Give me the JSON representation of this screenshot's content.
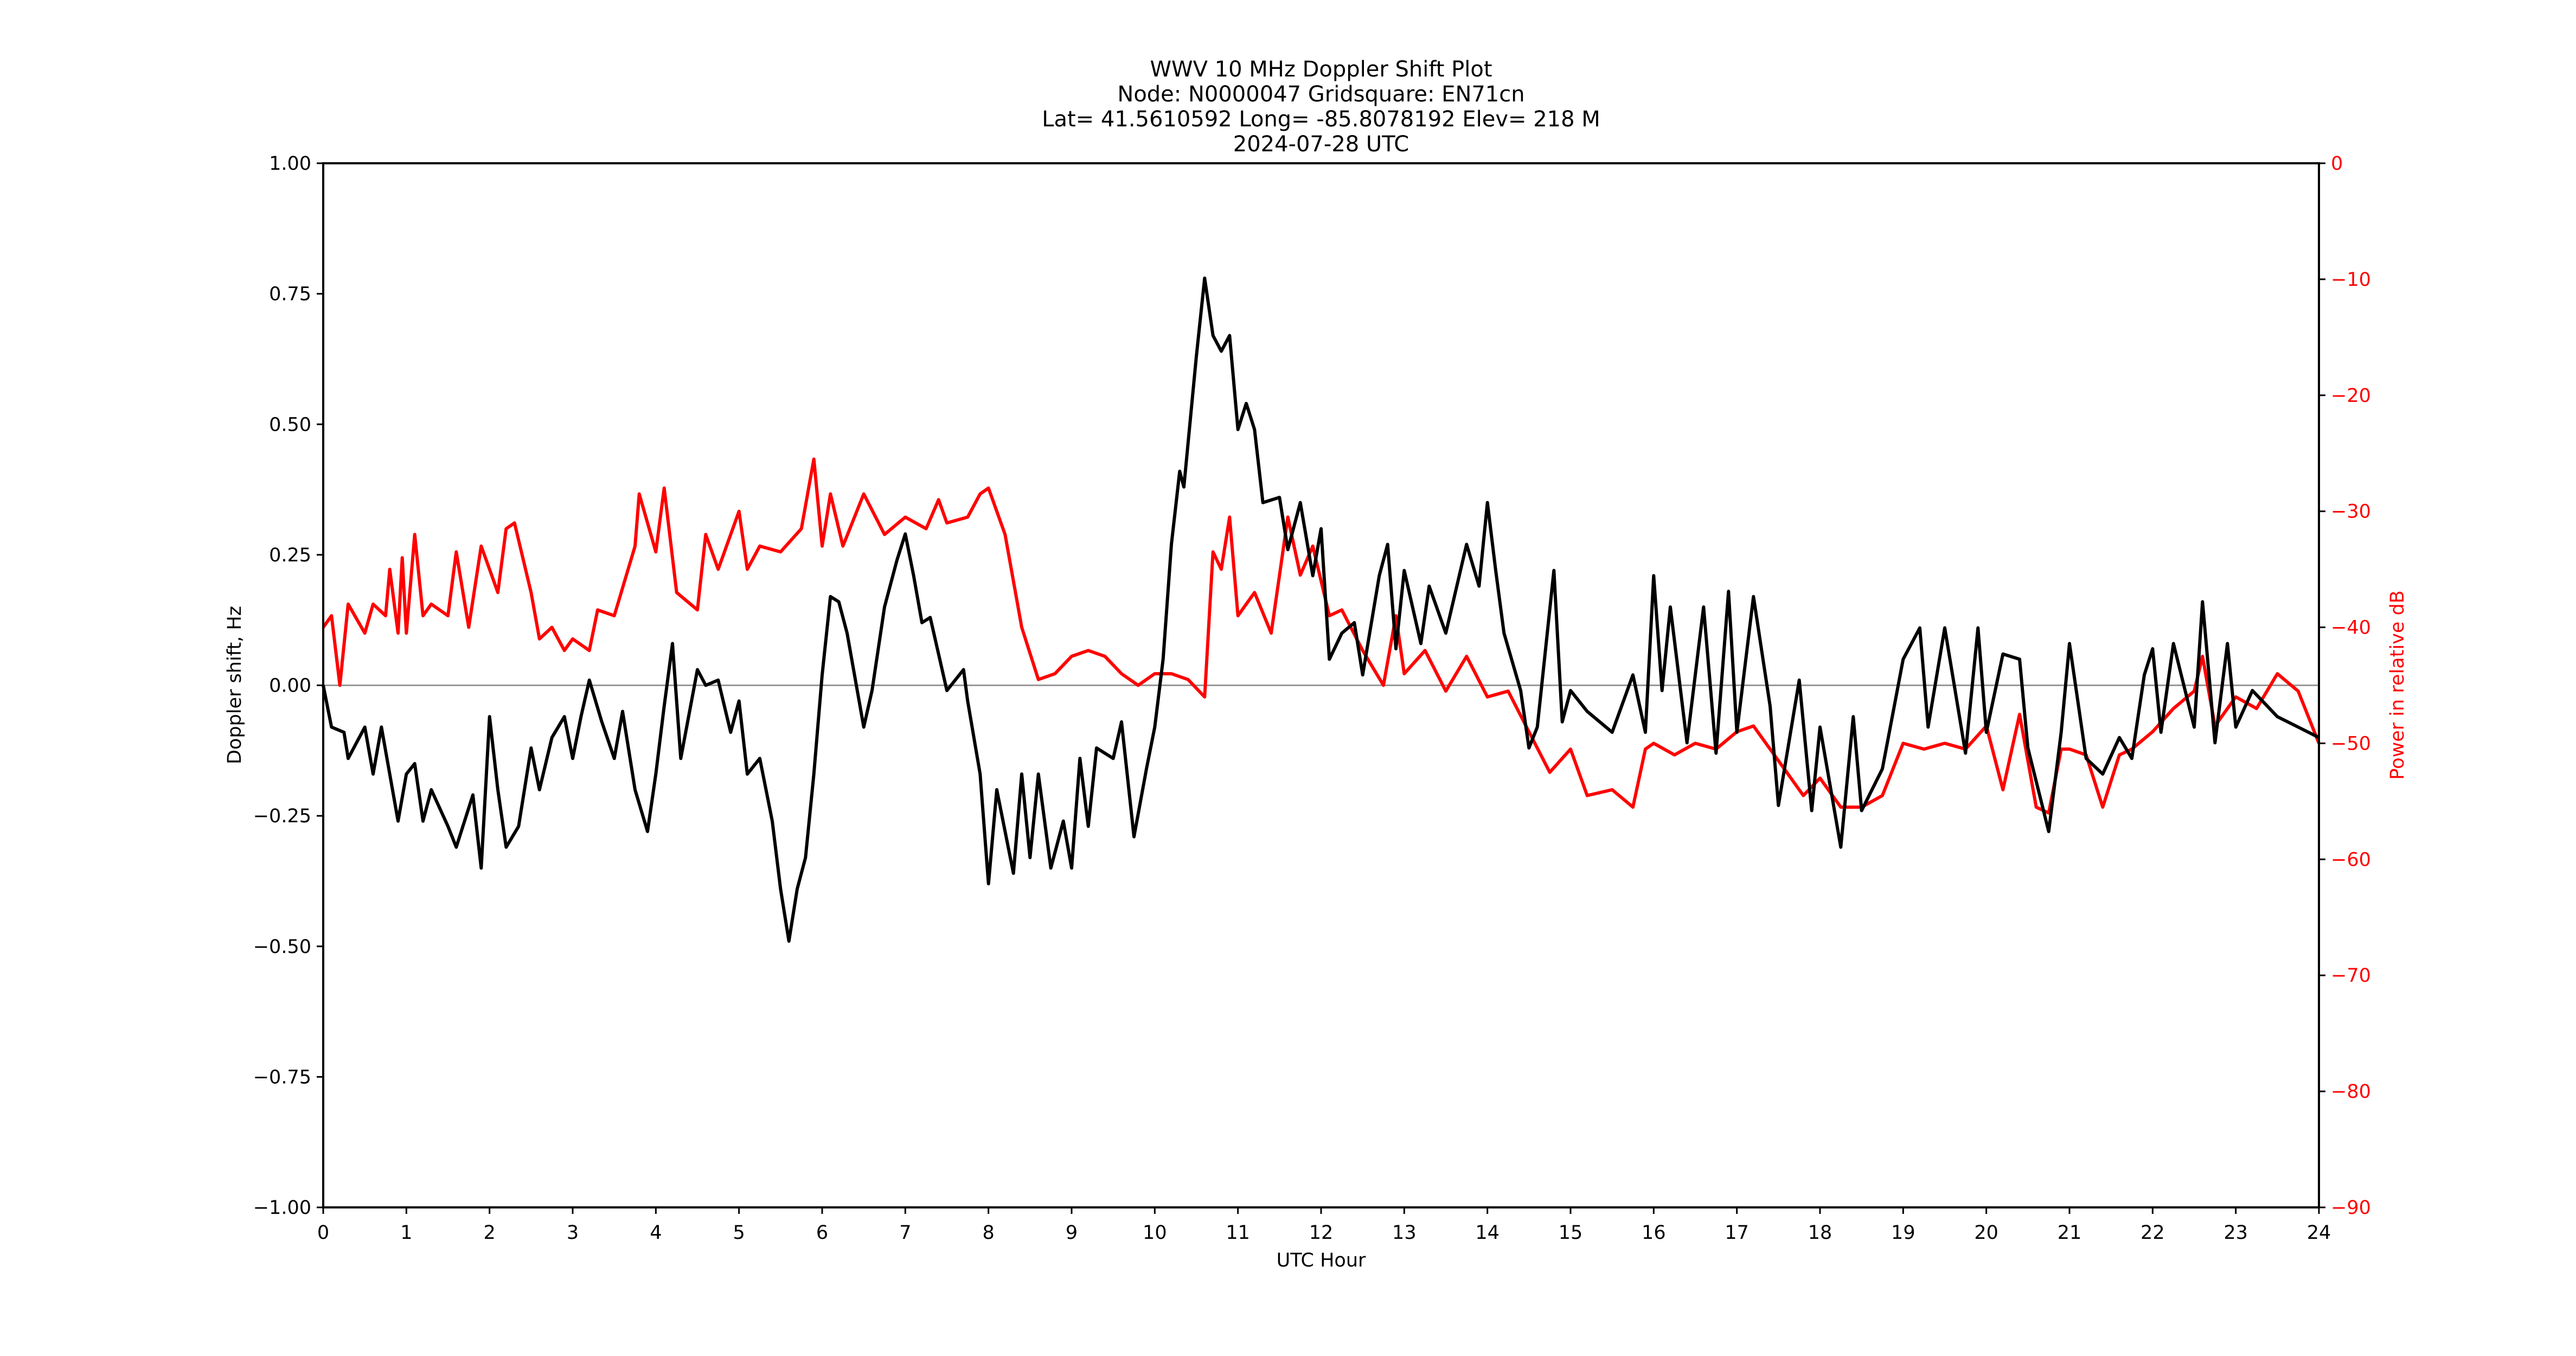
{
  "chart_data": {
    "type": "line",
    "title_lines": [
      "WWV 10 MHz Doppler Shift Plot",
      "Node:  N0000047     Gridsquare:  EN71cn",
      "Lat= 41.5610592    Long= -85.8078192    Elev= 218 M",
      "2024-07-28  UTC"
    ],
    "xlabel": "UTC Hour",
    "ylabel": "Doppler shift, Hz",
    "ylabel_right": "Power in relative dB",
    "xlim": [
      0,
      24
    ],
    "ylim": [
      -1.0,
      1.0
    ],
    "ylim_right": [
      -90,
      0
    ],
    "x_ticks": [
      "0",
      "1",
      "2",
      "3",
      "4",
      "5",
      "6",
      "7",
      "8",
      "9",
      "10",
      "11",
      "12",
      "13",
      "14",
      "15",
      "16",
      "17",
      "18",
      "19",
      "20",
      "21",
      "22",
      "23",
      "24"
    ],
    "y_ticks": [
      "1.00",
      "0.75",
      "0.50",
      "0.25",
      "0.00",
      "−0.25",
      "−0.50",
      "−0.75",
      "−1.00"
    ],
    "y_ticks_right": [
      "0",
      "−10",
      "−20",
      "−30",
      "−40",
      "−50",
      "−60",
      "−70",
      "−80",
      "−90"
    ],
    "grid": false,
    "zero_line": true,
    "colors": {
      "doppler": "#000000",
      "power": "#ff0000",
      "zero_line": "#999999"
    },
    "series": [
      {
        "axis": "left",
        "x": [
          0,
          0.1,
          0.25,
          0.3,
          0.5,
          0.6,
          0.7,
          0.9,
          1.0,
          1.1,
          1.2,
          1.3,
          1.5,
          1.6,
          1.8,
          1.9,
          2.0,
          2.1,
          2.2,
          2.35,
          2.5,
          2.6,
          2.75,
          2.9,
          3.0,
          3.1,
          3.2,
          3.35,
          3.5,
          3.6,
          3.75,
          3.9,
          4.0,
          4.1,
          4.2,
          4.3,
          4.5,
          4.6,
          4.75,
          4.9,
          5.0,
          5.1,
          5.25,
          5.4,
          5.5,
          5.6,
          5.7,
          5.8,
          5.9,
          6.0,
          6.1,
          6.2,
          6.3,
          6.5,
          6.6,
          6.75,
          6.9,
          7.0,
          7.1,
          7.2,
          7.3,
          7.5,
          7.7,
          7.75,
          7.9,
          8.0,
          8.1,
          8.3,
          8.4,
          8.5,
          8.6,
          8.75,
          8.9,
          9.0,
          9.1,
          9.2,
          9.3,
          9.5,
          9.6,
          9.75,
          9.9,
          10.0,
          10.1,
          10.2,
          10.3,
          10.35,
          10.5,
          10.6,
          10.7,
          10.8,
          10.9,
          11.0,
          11.1,
          11.2,
          11.3,
          11.5,
          11.6,
          11.75,
          11.9,
          12.0,
          12.1,
          12.25,
          12.4,
          12.5,
          12.7,
          12.8,
          12.9,
          13.0,
          13.2,
          13.3,
          13.5,
          13.75,
          13.9,
          14.0,
          14.1,
          14.2,
          14.4,
          14.5,
          14.6,
          14.8,
          14.9,
          15.0,
          15.2,
          15.5,
          15.75,
          15.9,
          16.0,
          16.1,
          16.2,
          16.4,
          16.6,
          16.75,
          16.9,
          17.0,
          17.2,
          17.4,
          17.5,
          17.75,
          17.9,
          18.0,
          18.25,
          18.4,
          18.5,
          18.75,
          19.0,
          19.2,
          19.3,
          19.5,
          19.75,
          19.9,
          20.0,
          20.2,
          20.4,
          20.5,
          20.75,
          20.9,
          21.0,
          21.2,
          21.4,
          21.6,
          21.75,
          21.9,
          22.0,
          22.1,
          22.25,
          22.5,
          22.6,
          22.75,
          22.9,
          23.0,
          23.2,
          23.5,
          23.75,
          24.0
        ],
        "y": [
          0,
          -0.08,
          -0.09,
          -0.14,
          -0.08,
          -0.17,
          -0.08,
          -0.26,
          -0.17,
          -0.15,
          -0.26,
          -0.2,
          -0.27,
          -0.31,
          -0.21,
          -0.35,
          -0.06,
          -0.2,
          -0.31,
          -0.27,
          -0.12,
          -0.2,
          -0.1,
          -0.06,
          -0.14,
          -0.06,
          0.01,
          -0.07,
          -0.14,
          -0.05,
          -0.2,
          -0.28,
          -0.17,
          -0.04,
          0.08,
          -0.14,
          0.03,
          0,
          0.01,
          -0.09,
          -0.03,
          -0.17,
          -0.14,
          -0.26,
          -0.39,
          -0.49,
          -0.39,
          -0.33,
          -0.17,
          0.02,
          0.17,
          0.16,
          0.1,
          -0.08,
          -0.01,
          0.15,
          0.24,
          0.29,
          0.21,
          0.12,
          0.13,
          -0.01,
          0.03,
          -0.03,
          -0.17,
          -0.38,
          -0.2,
          -0.36,
          -0.17,
          -0.33,
          -0.17,
          -0.35,
          -0.26,
          -0.35,
          -0.14,
          -0.27,
          -0.12,
          -0.14,
          -0.07,
          -0.29,
          -0.16,
          -0.08,
          0.05,
          0.27,
          0.41,
          0.38,
          0.63,
          0.78,
          0.67,
          0.64,
          0.67,
          0.49,
          0.54,
          0.49,
          0.35,
          0.36,
          0.26,
          0.35,
          0.21,
          0.3,
          0.05,
          0.1,
          0.12,
          0.02,
          0.21,
          0.27,
          0.07,
          0.22,
          0.08,
          0.19,
          0.1,
          0.27,
          0.19,
          0.35,
          0.22,
          0.1,
          -0.01,
          -0.12,
          -0.08,
          0.22,
          -0.07,
          -0.01,
          -0.05,
          -0.09,
          0.02,
          -0.09,
          0.21,
          -0.01,
          0.15,
          -0.11,
          0.15,
          -0.13,
          0.18,
          -0.09,
          0.17,
          -0.04,
          -0.23,
          0.01,
          -0.24,
          -0.08,
          -0.31,
          -0.06,
          -0.24,
          -0.16,
          0.05,
          0.11,
          -0.08,
          0.11,
          -0.13,
          0.11,
          -0.09,
          0.06,
          0.05,
          -0.12,
          -0.28,
          -0.09,
          0.08,
          -0.14,
          -0.17,
          -0.1,
          -0.14,
          0.02,
          0.07,
          -0.09,
          0.08,
          -0.08,
          0.16,
          -0.11,
          0.08,
          -0.08,
          -0.01,
          -0.06,
          -0.08,
          -0.1
        ]
      },
      {
        "axis": "right",
        "x": [
          0,
          0.1,
          0.2,
          0.3,
          0.5,
          0.6,
          0.75,
          0.8,
          0.9,
          0.95,
          1.0,
          1.1,
          1.2,
          1.3,
          1.5,
          1.6,
          1.75,
          1.9,
          2.0,
          2.1,
          2.2,
          2.3,
          2.5,
          2.6,
          2.75,
          2.9,
          3.0,
          3.2,
          3.3,
          3.5,
          3.75,
          3.8,
          4.0,
          4.1,
          4.25,
          4.5,
          4.6,
          4.75,
          5.0,
          5.1,
          5.25,
          5.5,
          5.75,
          5.9,
          6.0,
          6.1,
          6.25,
          6.5,
          6.75,
          7.0,
          7.25,
          7.4,
          7.5,
          7.75,
          7.9,
          8.0,
          8.2,
          8.4,
          8.6,
          8.8,
          9.0,
          9.2,
          9.4,
          9.6,
          9.8,
          10.0,
          10.2,
          10.4,
          10.6,
          10.7,
          10.8,
          10.9,
          11.0,
          11.2,
          11.4,
          11.6,
          11.75,
          11.9,
          12.1,
          12.25,
          12.5,
          12.75,
          12.9,
          13.0,
          13.25,
          13.5,
          13.75,
          14.0,
          14.25,
          14.5,
          14.75,
          15.0,
          15.2,
          15.5,
          15.75,
          15.9,
          16.0,
          16.25,
          16.5,
          16.75,
          17.0,
          17.2,
          17.4,
          17.6,
          17.8,
          18.0,
          18.25,
          18.5,
          18.75,
          19.0,
          19.25,
          19.5,
          19.75,
          20.0,
          20.2,
          20.4,
          20.6,
          20.75,
          20.9,
          21.0,
          21.2,
          21.4,
          21.6,
          21.75,
          22.0,
          22.25,
          22.5,
          22.6,
          22.75,
          23.0,
          23.25,
          23.5,
          23.75,
          24.0
        ],
        "y": [
          -40,
          -39,
          -45,
          -38,
          -40.5,
          -38,
          -39,
          -35,
          -40.5,
          -34,
          -40.5,
          -32,
          -39,
          -38,
          -39,
          -33.5,
          -40,
          -33,
          -35,
          -37,
          -31.5,
          -31,
          -37,
          -41,
          -40,
          -42,
          -41,
          -42,
          -38.5,
          -39,
          -33,
          -28.5,
          -33.5,
          -28,
          -37,
          -38.5,
          -32,
          -35,
          -30,
          -35,
          -33,
          -33.5,
          -31.5,
          -25.5,
          -33,
          -28.5,
          -33,
          -28.5,
          -32,
          -30.5,
          -31.5,
          -29,
          -31,
          -30.5,
          -28.5,
          -28,
          -32,
          -40,
          -44.5,
          -44,
          -42.5,
          -42,
          -42.5,
          -44,
          -45,
          -44,
          -44,
          -44.5,
          -46,
          -33.5,
          -35,
          -30.5,
          -39,
          -37,
          -40.5,
          -30.5,
          -35.5,
          -33,
          -39,
          -38.5,
          -42,
          -45,
          -39,
          -44,
          -42,
          -45.5,
          -42.5,
          -46,
          -45.5,
          -49,
          -52.5,
          -50.5,
          -54.5,
          -54,
          -55.5,
          -50.5,
          -50,
          -51,
          -50,
          -50.5,
          -49,
          -48.5,
          -50.5,
          -52.5,
          -54.5,
          -53,
          -55.5,
          -55.5,
          -54.5,
          -50,
          -50.5,
          -50,
          -50.5,
          -48.5,
          -54,
          -47.5,
          -55.5,
          -56,
          -50.5,
          -50.5,
          -51,
          -55.5,
          -51,
          -50.5,
          -49,
          -47,
          -45.5,
          -42.5,
          -48.5,
          -46,
          -47,
          -44,
          -45.5,
          -50
        ]
      }
    ]
  }
}
